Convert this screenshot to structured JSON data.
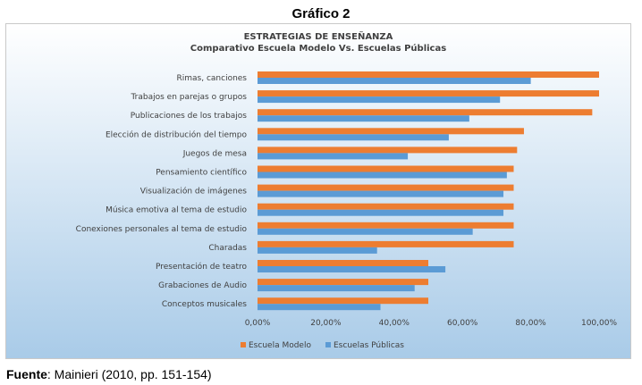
{
  "figure_label": "Gráfico 2",
  "source": {
    "label": "Fuente",
    "text": ": Mainieri (2010, pp. 151-154)"
  },
  "colors": {
    "escuela_modelo": "#ed7d31",
    "escuelas_publicas": "#5b9bd5",
    "background_top": "#ffffff",
    "background_bottom": "#a9cbe8"
  },
  "chart_data": {
    "type": "bar",
    "orientation": "horizontal",
    "title": "ESTRATEGIAS DE ENSEÑANZA",
    "subtitle": "Comparativo Escuela Modelo Vs. Escuelas Públicas",
    "categories": [
      "Rimas, canciones",
      "Trabajos en parejas o grupos",
      "Publicaciones de los trabajos",
      "Elección de distribución del tiempo",
      "Juegos de mesa",
      "Pensamiento científico",
      "Visualización de imágenes",
      "Música emotiva al tema de estudio",
      "Conexiones personales al tema de estudio",
      "Charadas",
      "Presentación de teatro",
      "Grabaciones de Audio",
      "Conceptos musicales"
    ],
    "series": [
      {
        "name": "Escuela Modelo",
        "values": [
          100,
          100,
          98,
          78,
          76,
          75,
          75,
          75,
          75,
          75,
          50,
          50,
          50
        ]
      },
      {
        "name": "Escuelas Públicas",
        "values": [
          80,
          71,
          62,
          56,
          44,
          73,
          72,
          72,
          63,
          35,
          55,
          46,
          36
        ]
      }
    ],
    "xlim": [
      0,
      100
    ],
    "x_ticks": [
      "0,00%",
      "20,00%",
      "40,00%",
      "60,00%",
      "80,00%",
      "100,00%"
    ],
    "xlabel": "",
    "ylabel": "",
    "legend_position": "bottom",
    "grid": false
  }
}
